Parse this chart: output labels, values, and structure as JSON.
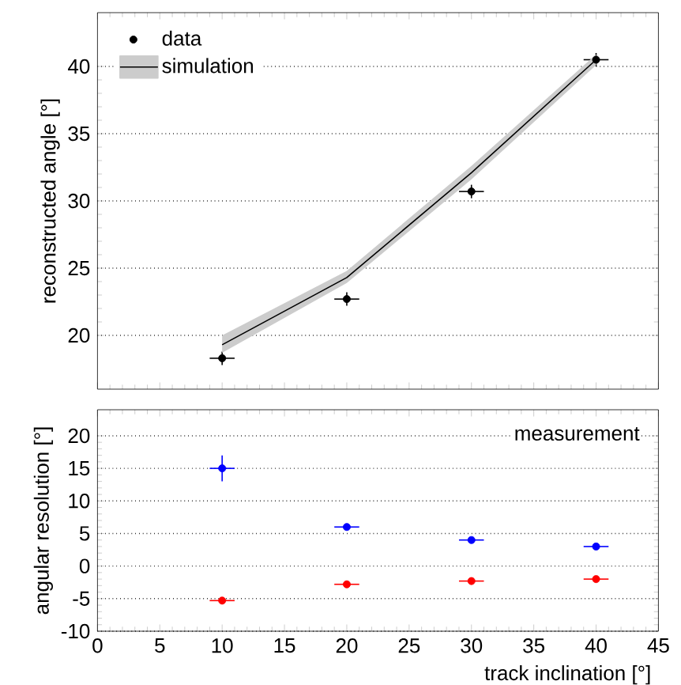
{
  "chart_data": [
    {
      "type": "scatter",
      "x": [
        10,
        20,
        30,
        40
      ],
      "xlim": [
        0,
        45
      ],
      "xticks": [
        0,
        5,
        10,
        15,
        20,
        25,
        30,
        35,
        40,
        45
      ],
      "tick_labels": "y",
      "ylabel": "reconstructed angle [°]",
      "ylim": [
        16,
        44
      ],
      "yticks": [
        20,
        25,
        30,
        35,
        40
      ],
      "grid": "y",
      "legend": "top left",
      "series": [
        {
          "name": "data",
          "marker": "circle",
          "color": "#000000",
          "values": [
            18.3,
            22.7,
            30.7,
            40.5
          ],
          "errors": [
            0.5,
            0.5,
            0.5,
            0.5
          ],
          "xerrors": [
            1,
            1,
            1,
            1
          ]
        },
        {
          "name": "simulation",
          "type": "line",
          "marker": "none",
          "color": "#000000",
          "values": [
            19.3,
            24.3,
            32.1,
            40.5
          ],
          "lower": [
            18.7,
            23.9,
            31.6,
            40.1
          ],
          "upper": [
            20.0,
            24.8,
            32.6,
            40.9
          ]
        }
      ]
    },
    {
      "type": "scatter",
      "x": [
        10,
        20,
        30,
        40
      ],
      "xlim": [
        0,
        45
      ],
      "xticks": [
        0,
        5,
        10,
        15,
        20,
        25,
        30,
        35,
        40,
        45
      ],
      "xlabel": "track inclination [°]",
      "ylabel": "angular resolution [°]",
      "ylim": [
        -10,
        24
      ],
      "yticks": [
        -10,
        -5,
        0,
        5,
        10,
        15,
        20
      ],
      "grid": "y",
      "annotations": [
        "measurement"
      ],
      "series": [
        {
          "marker": "circle",
          "color": "#0000ff",
          "values": [
            15,
            6,
            4,
            3
          ],
          "errors": [
            2,
            null,
            null,
            null
          ],
          "xerrors": [
            1,
            1,
            1,
            1
          ]
        },
        {
          "marker": "circle",
          "color": "#ff0000",
          "values": [
            -5.3,
            -2.8,
            -2.3,
            -2.0
          ],
          "errors": [
            null,
            null,
            null,
            null
          ],
          "xerrors": [
            1,
            1,
            1,
            1
          ]
        }
      ]
    }
  ]
}
